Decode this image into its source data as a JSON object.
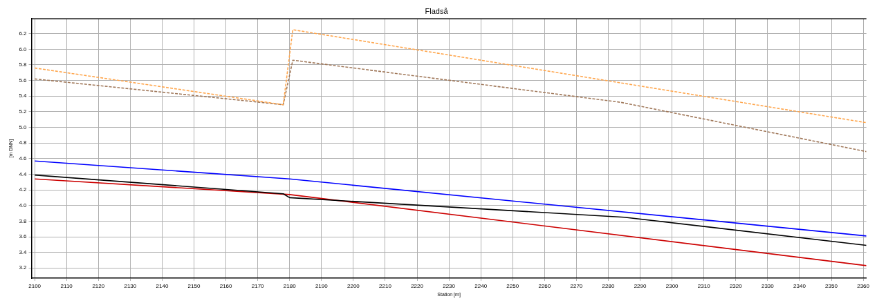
{
  "chart_data": {
    "type": "line",
    "title": "Fladså",
    "xlabel": "Station [m]",
    "ylabel": "[m DNN]",
    "xlim": [
      2099,
      2361
    ],
    "ylim": [
      3.07,
      6.39
    ],
    "xticks": [
      2100,
      2110,
      2120,
      2130,
      2140,
      2150,
      2160,
      2170,
      2180,
      2190,
      2200,
      2210,
      2220,
      2230,
      2240,
      2250,
      2260,
      2270,
      2280,
      2290,
      2300,
      2310,
      2320,
      2330,
      2340,
      2350,
      2360
    ],
    "yticks": [
      3.2,
      3.4,
      3.6,
      3.8,
      {
        "value": 4,
        "label": "4.0"
      },
      4.2,
      4.4,
      4.6,
      4.8,
      {
        "value": 5,
        "label": "5.0"
      },
      5.2,
      5.4,
      5.6,
      5.8,
      {
        "value": 6,
        "label": "6.0"
      },
      6.2
    ],
    "grid": true,
    "legend": false,
    "marker": "none",
    "series": [
      {
        "color": "#ffa64d",
        "line_style": "dashed",
        "x": [
          2100,
          2178,
          2181,
          2361
        ],
        "values": [
          5.76,
          5.29,
          6.25,
          5.06
        ]
      },
      {
        "color": "#a0785a",
        "line_style": "dashed",
        "x": [
          2100,
          2178,
          2181,
          2284,
          2361
        ],
        "values": [
          5.62,
          5.29,
          5.86,
          5.32,
          4.69
        ]
      },
      {
        "color": "#0000ff",
        "line_style": "solid",
        "x": [
          2100,
          2180,
          2361
        ],
        "values": [
          4.57,
          4.34,
          3.61
        ]
      },
      {
        "color": "#000000",
        "line_style": "solid",
        "x": [
          2100,
          2178,
          2180,
          2285,
          2361
        ],
        "values": [
          4.39,
          4.15,
          4.1,
          3.85,
          3.49
        ]
      },
      {
        "color": "#cc0000",
        "line_style": "solid",
        "x": [
          2100,
          2180,
          2361
        ],
        "values": [
          4.34,
          4.14,
          3.23
        ]
      }
    ]
  }
}
